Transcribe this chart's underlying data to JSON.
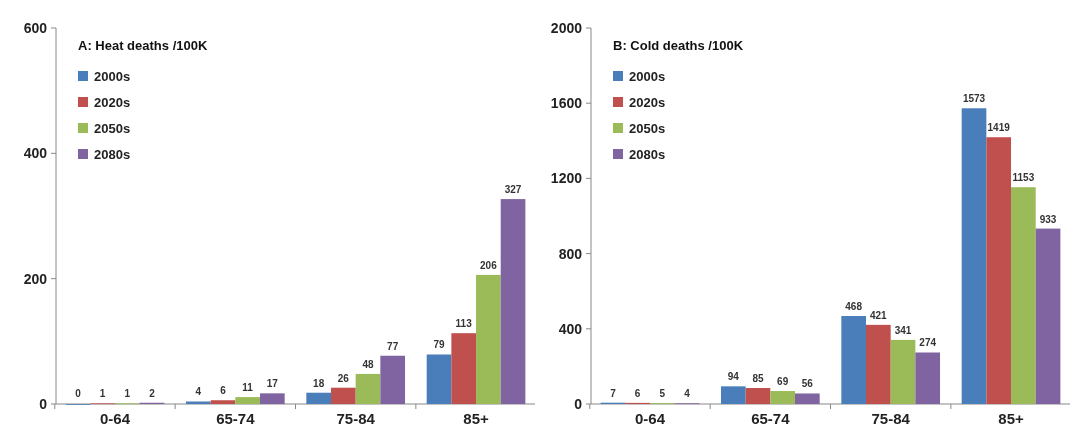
{
  "chart_data": [
    {
      "type": "bar",
      "title": "A: Heat deaths /100K",
      "categories": [
        "0-64",
        "65-74",
        "75-84",
        "85+"
      ],
      "series": [
        {
          "name": "2000s",
          "color": "#4a7ebb",
          "values": [
            0,
            4,
            18,
            79
          ]
        },
        {
          "name": "2020s",
          "color": "#c0504d",
          "values": [
            1,
            6,
            26,
            113
          ]
        },
        {
          "name": "2050s",
          "color": "#9bbb59",
          "values": [
            1,
            11,
            48,
            206
          ]
        },
        {
          "name": "2080s",
          "color": "#8064a2",
          "values": [
            2,
            17,
            77,
            327
          ]
        }
      ],
      "ylim": [
        0,
        600
      ],
      "yticks": [
        0,
        200,
        400,
        600
      ],
      "grid": false,
      "legend": "top left",
      "data_labels": true
    },
    {
      "type": "bar",
      "title": "B: Cold deaths /100K",
      "categories": [
        "0-64",
        "65-74",
        "75-84",
        "85+"
      ],
      "series": [
        {
          "name": "2000s",
          "color": "#4a7ebb",
          "values": [
            7,
            94,
            468,
            1573
          ]
        },
        {
          "name": "2020s",
          "color": "#c0504d",
          "values": [
            6,
            85,
            421,
            1419
          ]
        },
        {
          "name": "2050s",
          "color": "#9bbb59",
          "values": [
            5,
            69,
            341,
            1153
          ]
        },
        {
          "name": "2080s",
          "color": "#8064a2",
          "values": [
            4,
            56,
            274,
            933
          ]
        }
      ],
      "ylim": [
        0,
        2000
      ],
      "yticks": [
        0,
        400,
        800,
        1200,
        1600,
        2000
      ],
      "grid": false,
      "legend": "top left",
      "data_labels": true
    }
  ]
}
